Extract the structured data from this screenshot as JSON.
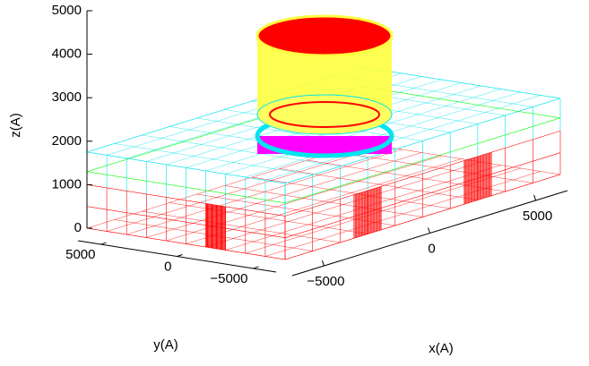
{
  "chart_data": {
    "type": "wireframe",
    "xlabel": "x(A)",
    "ylabel": "y(A)",
    "zlabel": "z(A)",
    "xlim": [
      -6500,
      6500
    ],
    "ylim": [
      -6500,
      6500
    ],
    "zlim": [
      0,
      5000
    ],
    "xticks": [
      {
        "value": -5000,
        "label": "−5000"
      },
      0,
      5000
    ],
    "yticks": [
      {
        "value": -5000,
        "label": "−5000"
      },
      0,
      5000
    ],
    "zticks": [
      0,
      1000,
      2000,
      3000,
      4000,
      5000
    ]
  }
}
